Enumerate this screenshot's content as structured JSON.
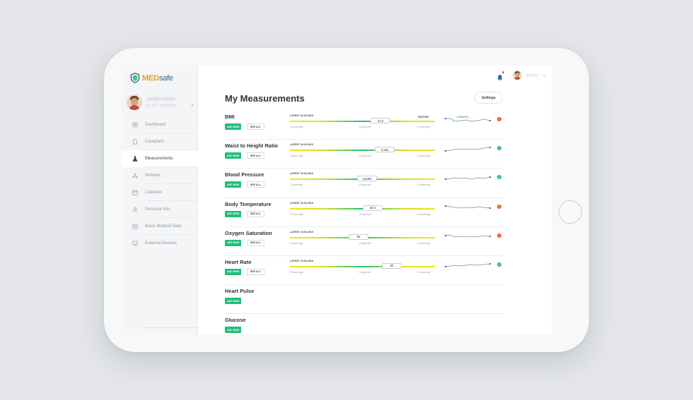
{
  "app": {
    "logo_med": "MED",
    "logo_safe": "safe",
    "accent": "#1fbf7a",
    "warning": "#f05a28"
  },
  "user": {
    "name": "Jan-Marc Verhulst",
    "sub": "ID: 3042, 00:00 PMD"
  },
  "topbar": {
    "user": "Jan-Marc"
  },
  "sidebar": {
    "items": [
      {
        "label": "Dashboard",
        "icon": "dashboard-icon"
      },
      {
        "label": "Careplans",
        "icon": "document-icon"
      },
      {
        "label": "Measurements",
        "icon": "flask-icon"
      },
      {
        "label": "Network",
        "icon": "network-icon"
      },
      {
        "label": "Calendar",
        "icon": "calendar-icon"
      },
      {
        "label": "Personal Info",
        "icon": "person-icon"
      },
      {
        "label": "Basic Medical Data",
        "icon": "medical-icon"
      },
      {
        "label": "External Devices",
        "icon": "devices-icon"
      }
    ]
  },
  "main": {
    "title": "My Measurements",
    "settings_label": "Settings",
    "history_label": "HISTORY",
    "history_range": "3 MONTH",
    "add_label": "ADD NEW",
    "see_label": "SEE ALL",
    "concerning_label": "Concerning",
    "doing_well_label": "Doing well",
    "measurements": [
      {
        "name": "BMI",
        "latest": "LATEST 23.06.2019",
        "value": "24.9",
        "status": "warn"
      },
      {
        "name": "Waist to Height Ratio",
        "latest": "LATEST 23.06.2019",
        "value": "0.294",
        "status": "ok"
      },
      {
        "name": "Blood Pressure",
        "latest": "LATEST 23.06.2019",
        "value": "120/80",
        "status": "ok"
      },
      {
        "name": "Body Temperature",
        "latest": "LATEST 23.06.2019",
        "value": "36.6",
        "status": "warn"
      },
      {
        "name": "Oxygen Saturation",
        "latest": "LATEST 23.06.2019",
        "value": "60",
        "status": "warn"
      },
      {
        "name": "Heart Rate",
        "latest": "LATEST 23.06.2019",
        "value": "90",
        "status": "ok"
      },
      {
        "name": "Heart Pulse"
      },
      {
        "name": "Glucose"
      }
    ]
  }
}
